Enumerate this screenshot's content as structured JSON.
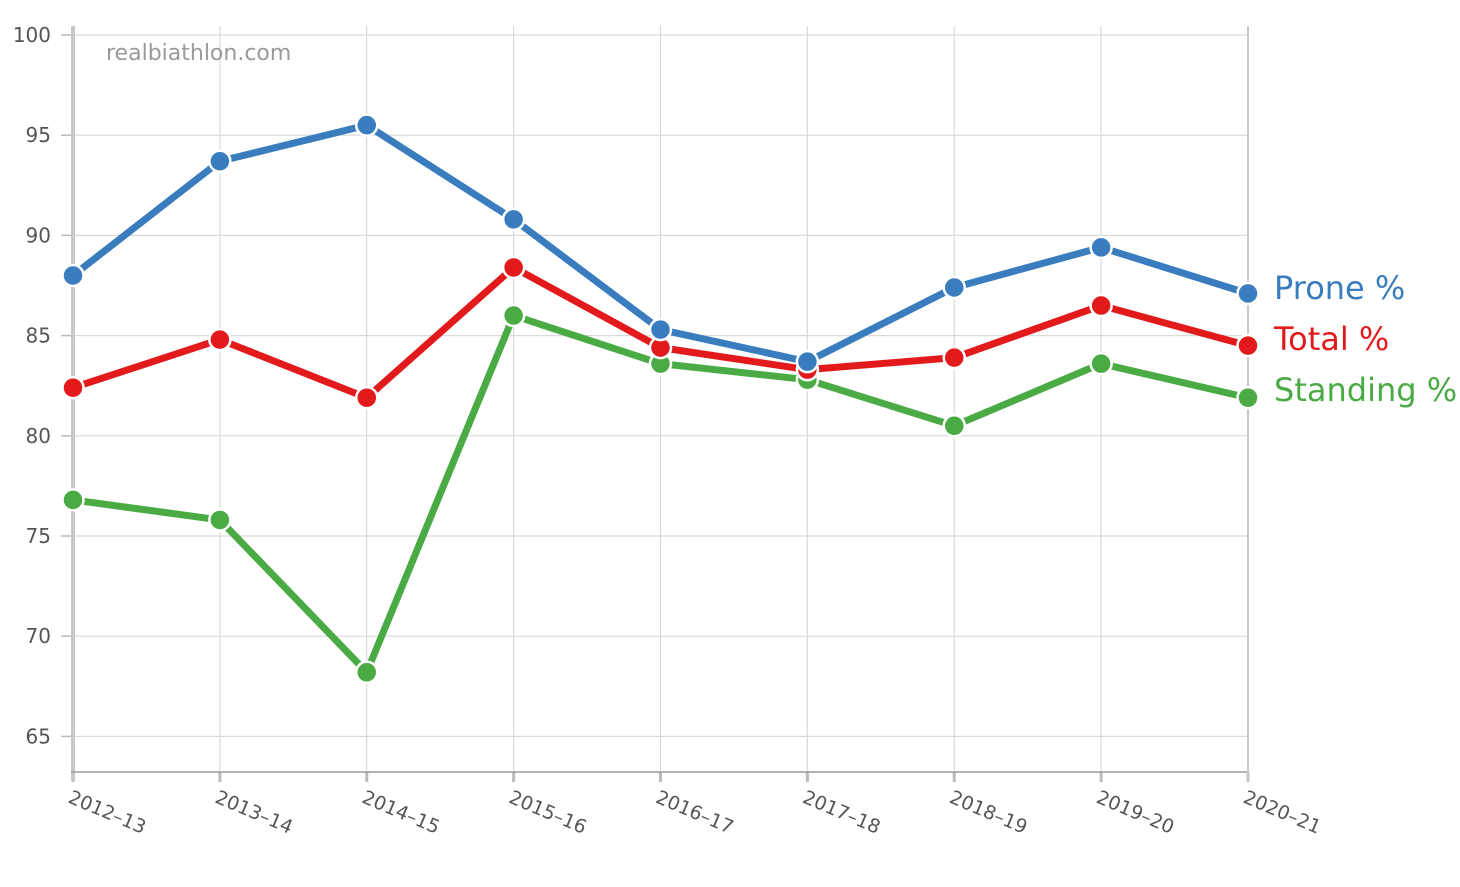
{
  "chart_data": {
    "type": "line",
    "watermark": "realbiathlon.com",
    "categories": [
      "2012–13",
      "2013–14",
      "2014–15",
      "2015–16",
      "2016–17",
      "2017–18",
      "2018–19",
      "2019–20",
      "2020–21"
    ],
    "ylim": [
      63,
      100
    ],
    "yticks": [
      "100",
      "95",
      "90",
      "85",
      "80",
      "75",
      "70",
      "65"
    ],
    "grid": true,
    "legend_placement": "right, beside line ends",
    "series": [
      {
        "name": "Prone %",
        "color": "#3a7dbf",
        "values": [
          88.0,
          93.7,
          95.5,
          90.8,
          85.3,
          83.7,
          87.4,
          89.4,
          87.1
        ]
      },
      {
        "name": "Total %",
        "color": "#e31a1c",
        "values": [
          82.4,
          84.8,
          81.9,
          88.4,
          84.4,
          83.3,
          83.9,
          86.5,
          84.5
        ]
      },
      {
        "name": "Standing %",
        "color": "#4aab45",
        "values": [
          76.8,
          75.8,
          68.2,
          86.0,
          83.6,
          82.8,
          80.5,
          83.6,
          81.9
        ]
      }
    ]
  }
}
